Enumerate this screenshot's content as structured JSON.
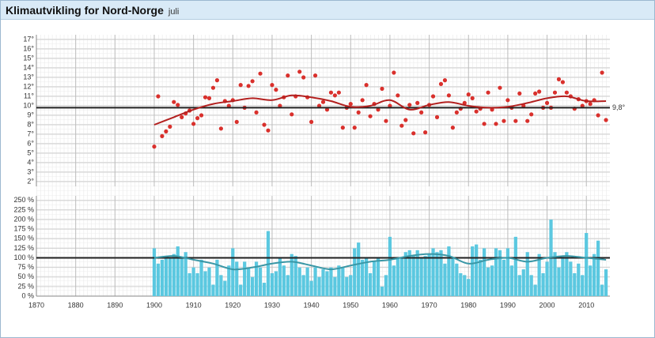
{
  "header": {
    "title": "Klimautvikling for Nord-Norge",
    "subtitle": "juli"
  },
  "chart_data": [
    {
      "type": "scatter",
      "color": "#d9302c",
      "xlim": [
        1870,
        2016
      ],
      "ylim": [
        1.5,
        17.5
      ],
      "xticks": [
        1870,
        1880,
        1890,
        1900,
        1910,
        1920,
        1930,
        1940,
        1950,
        1960,
        1970,
        1980,
        1990,
        2000,
        2010
      ],
      "yticks": [
        {
          "value": 2,
          "label": "2°"
        },
        {
          "value": 3,
          "label": "3°"
        },
        {
          "value": 4,
          "label": "4°"
        },
        {
          "value": 5,
          "label": "5°"
        },
        {
          "value": 6,
          "label": "6°"
        },
        {
          "value": 7,
          "label": "7°"
        },
        {
          "value": 8,
          "label": "8°"
        },
        {
          "value": 9,
          "label": "9°"
        },
        {
          "value": 10,
          "label": "10°"
        },
        {
          "value": 11,
          "label": "11°"
        },
        {
          "value": 12,
          "label": "12°"
        },
        {
          "value": 13,
          "label": "13°"
        },
        {
          "value": 14,
          "label": "14°"
        },
        {
          "value": 15,
          "label": "15°"
        },
        {
          "value": 16,
          "label": "16°"
        },
        {
          "value": 17,
          "label": "17°"
        }
      ],
      "grid": true,
      "x": [
        1900,
        1901,
        1902,
        1903,
        1904,
        1905,
        1906,
        1907,
        1908,
        1909,
        1910,
        1911,
        1912,
        1913,
        1914,
        1915,
        1916,
        1917,
        1918,
        1919,
        1920,
        1921,
        1922,
        1923,
        1924,
        1925,
        1926,
        1927,
        1928,
        1929,
        1930,
        1931,
        1932,
        1933,
        1934,
        1935,
        1936,
        1937,
        1938,
        1939,
        1940,
        1941,
        1942,
        1943,
        1944,
        1945,
        1946,
        1947,
        1948,
        1949,
        1950,
        1951,
        1952,
        1953,
        1954,
        1955,
        1956,
        1957,
        1958,
        1959,
        1960,
        1961,
        1962,
        1963,
        1964,
        1965,
        1966,
        1967,
        1968,
        1969,
        1970,
        1971,
        1972,
        1973,
        1974,
        1975,
        1976,
        1977,
        1978,
        1979,
        1980,
        1981,
        1982,
        1983,
        1984,
        1985,
        1986,
        1987,
        1988,
        1989,
        1990,
        1991,
        1992,
        1993,
        1994,
        1995,
        1996,
        1997,
        1998,
        1999,
        2000,
        2001,
        2002,
        2003,
        2004,
        2005,
        2006,
        2007,
        2008,
        2009,
        2010,
        2011,
        2012,
        2013,
        2014,
        2015
      ],
      "values": [
        5.7,
        11.0,
        6.8,
        7.3,
        7.8,
        10.4,
        10.1,
        8.8,
        9.2,
        9.5,
        8.1,
        8.7,
        9.0,
        10.9,
        10.8,
        11.9,
        12.7,
        7.6,
        10.5,
        10.0,
        10.6,
        8.3,
        12.2,
        9.8,
        12.1,
        12.6,
        9.3,
        13.4,
        8.0,
        7.4,
        12.2,
        11.7,
        10.0,
        10.9,
        13.2,
        9.1,
        11.0,
        13.6,
        13.0,
        10.9,
        8.3,
        13.2,
        10.0,
        10.4,
        9.6,
        11.4,
        11.1,
        11.4,
        7.7,
        9.8,
        10.2,
        7.7,
        9.3,
        10.6,
        12.2,
        8.9,
        10.2,
        9.6,
        11.8,
        8.4,
        10.0,
        13.5,
        11.1,
        7.9,
        8.5,
        10.1,
        7.1,
        10.3,
        9.3,
        7.2,
        10.1,
        11.0,
        8.8,
        12.3,
        12.7,
        11.1,
        7.7,
        9.3,
        9.7,
        10.3,
        11.2,
        10.8,
        9.4,
        9.7,
        8.1,
        11.4,
        9.6,
        8.1,
        11.9,
        8.4,
        10.6,
        9.8,
        8.4,
        11.3,
        10.0,
        8.4,
        9.1,
        11.3,
        11.5,
        9.8,
        10.3,
        9.8,
        11.4,
        12.8,
        12.5,
        11.4,
        11.0,
        9.7,
        10.7,
        10.0,
        10.5,
        10.2,
        10.6,
        9.0,
        13.5,
        8.5
      ],
      "smooth": {
        "color": "#b3201f",
        "x": [
          1900,
          1905,
          1910,
          1915,
          1920,
          1925,
          1930,
          1935,
          1940,
          1945,
          1950,
          1955,
          1960,
          1965,
          1970,
          1975,
          1980,
          1985,
          1990,
          1995,
          2000,
          2005,
          2010,
          2015
        ],
        "values": [
          8.0,
          8.8,
          9.6,
          10.2,
          10.5,
          10.8,
          10.6,
          11.1,
          10.9,
          10.5,
          9.9,
          10.0,
          10.6,
          9.6,
          10.1,
          10.4,
          10.0,
          9.8,
          9.9,
          10.3,
          10.8,
          11.0,
          10.5,
          10.5
        ]
      },
      "normal": {
        "value": 9.8,
        "label": "9,8°"
      }
    },
    {
      "type": "bar",
      "color": "#5bc8e0",
      "xlim": [
        1870,
        2016
      ],
      "ylim": [
        0,
        262
      ],
      "xticks": [
        1870,
        1880,
        1890,
        1900,
        1910,
        1920,
        1930,
        1940,
        1950,
        1960,
        1970,
        1980,
        1990,
        2000,
        2010
      ],
      "yticks": [
        {
          "value": 0,
          "label": "0 %"
        },
        {
          "value": 25,
          "label": "25 %"
        },
        {
          "value": 50,
          "label": "50 %"
        },
        {
          "value": 75,
          "label": "75 %"
        },
        {
          "value": 100,
          "label": "100 %"
        },
        {
          "value": 125,
          "label": "125 %"
        },
        {
          "value": 150,
          "label": "150 %"
        },
        {
          "value": 175,
          "label": "175 %"
        },
        {
          "value": 200,
          "label": "200 %"
        },
        {
          "value": 225,
          "label": "225 %"
        },
        {
          "value": 250,
          "label": "250 %"
        }
      ],
      "grid": true,
      "x": [
        1900,
        1901,
        1902,
        1903,
        1904,
        1905,
        1906,
        1907,
        1908,
        1909,
        1910,
        1911,
        1912,
        1913,
        1914,
        1915,
        1916,
        1917,
        1918,
        1919,
        1920,
        1921,
        1922,
        1923,
        1924,
        1925,
        1926,
        1927,
        1928,
        1929,
        1930,
        1931,
        1932,
        1933,
        1934,
        1935,
        1936,
        1937,
        1938,
        1939,
        1940,
        1941,
        1942,
        1943,
        1944,
        1945,
        1946,
        1947,
        1948,
        1949,
        1950,
        1951,
        1952,
        1953,
        1954,
        1955,
        1956,
        1957,
        1958,
        1959,
        1960,
        1961,
        1962,
        1963,
        1964,
        1965,
        1966,
        1967,
        1968,
        1969,
        1970,
        1971,
        1972,
        1973,
        1974,
        1975,
        1976,
        1977,
        1978,
        1979,
        1980,
        1981,
        1982,
        1983,
        1984,
        1985,
        1986,
        1987,
        1988,
        1989,
        1990,
        1991,
        1992,
        1993,
        1994,
        1995,
        1996,
        1997,
        1998,
        1999,
        2000,
        2001,
        2002,
        2003,
        2004,
        2005,
        2006,
        2007,
        2008,
        2009,
        2010,
        2011,
        2012,
        2013,
        2014,
        2015
      ],
      "values": [
        125,
        85,
        95,
        105,
        100,
        110,
        130,
        100,
        115,
        60,
        75,
        60,
        95,
        65,
        75,
        30,
        95,
        55,
        40,
        80,
        125,
        90,
        30,
        90,
        75,
        50,
        90,
        75,
        35,
        170,
        60,
        65,
        100,
        80,
        55,
        110,
        105,
        75,
        55,
        75,
        40,
        75,
        50,
        70,
        65,
        75,
        50,
        80,
        75,
        50,
        55,
        125,
        140,
        95,
        100,
        60,
        90,
        100,
        25,
        55,
        155,
        80,
        100,
        100,
        115,
        120,
        105,
        120,
        100,
        105,
        110,
        125,
        115,
        120,
        85,
        130,
        100,
        85,
        60,
        55,
        45,
        130,
        135,
        95,
        125,
        75,
        80,
        125,
        120,
        95,
        125,
        80,
        155,
        55,
        70,
        115,
        55,
        30,
        110,
        60,
        90,
        200,
        115,
        75,
        105,
        115,
        90,
        60,
        85,
        55,
        165,
        80,
        110,
        145,
        30,
        70
      ],
      "smooth": {
        "color": "#3a97a6",
        "x": [
          1900,
          1905,
          1910,
          1915,
          1920,
          1925,
          1930,
          1935,
          1940,
          1945,
          1950,
          1955,
          1960,
          1965,
          1970,
          1975,
          1980,
          1985,
          1990,
          1995,
          2000,
          2005,
          2010,
          2015
        ],
        "values": [
          100,
          105,
          95,
          85,
          70,
          75,
          85,
          90,
          80,
          70,
          80,
          90,
          95,
          105,
          110,
          105,
          85,
          95,
          100,
          90,
          100,
          105,
          100,
          95
        ]
      },
      "normal": {
        "value": 100
      }
    }
  ]
}
